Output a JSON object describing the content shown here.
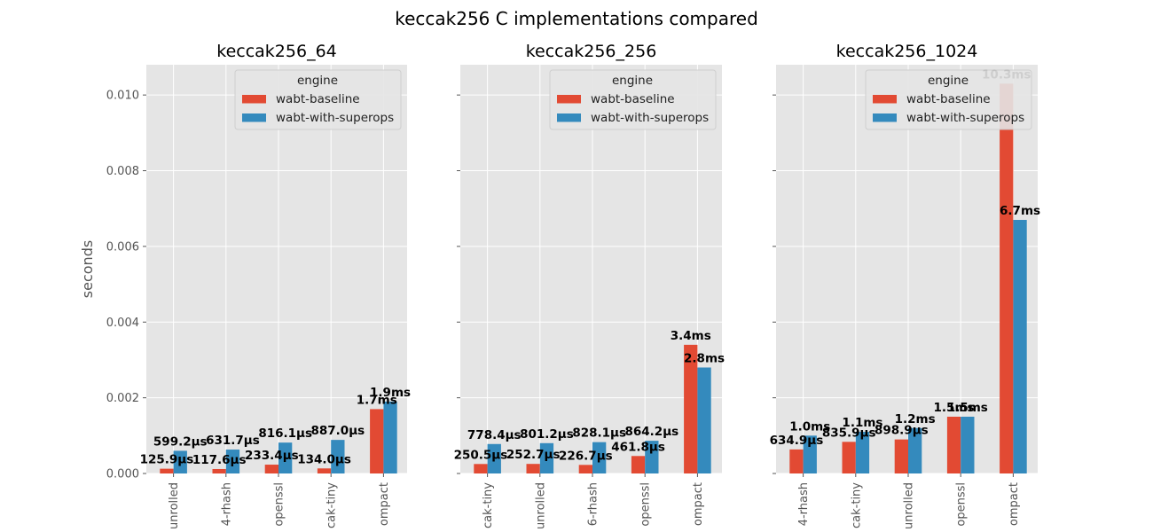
{
  "figure_title": "keccak256 C implementations compared",
  "colors": {
    "wabt-baseline": "#E24A33",
    "wabt-with-superops": "#348ABD",
    "panel_bg": "#E5E5E5",
    "grid": "#ffffff"
  },
  "chart_data": [
    {
      "type": "bar",
      "title": "keccak256_64",
      "ylabel": "seconds",
      "ylim": [
        0,
        0.0108
      ],
      "yticks": [
        "0.000",
        "0.002",
        "0.004",
        "0.006",
        "0.008",
        "0.010"
      ],
      "grid": true,
      "legend": {
        "title": "engine",
        "placement": "top-right",
        "entries": [
          "wabt-baseline",
          "wabt-with-superops"
        ]
      },
      "categories": [
        "unrolled",
        "4-rhash",
        "openssl",
        "cak-tiny",
        "ompact"
      ],
      "series": [
        {
          "name": "wabt-baseline",
          "values": [
            0.0001259,
            0.0001176,
            0.0002334,
            0.000134,
            0.0017
          ],
          "labels": [
            "125.9µs",
            "117.6µs",
            "233.4µs",
            "134.0µs",
            "1.7ms"
          ]
        },
        {
          "name": "wabt-with-superops",
          "values": [
            0.0005992,
            0.0006317,
            0.0008161,
            0.000887,
            0.0019
          ],
          "labels": [
            "599.2µs",
            "631.7µs",
            "816.1µs",
            "887.0µs",
            "1.9ms"
          ]
        }
      ]
    },
    {
      "type": "bar",
      "title": "keccak256_256",
      "ylabel": "",
      "ylim": [
        0,
        0.0108
      ],
      "yticks": [],
      "grid": true,
      "legend": {
        "title": "engine",
        "placement": "top-right",
        "entries": [
          "wabt-baseline",
          "wabt-with-superops"
        ]
      },
      "categories": [
        "cak-tiny",
        "unrolled",
        "6-rhash",
        "openssl",
        "ompact"
      ],
      "series": [
        {
          "name": "wabt-baseline",
          "values": [
            0.0002505,
            0.0002527,
            0.0002267,
            0.0004618,
            0.0034
          ],
          "labels": [
            "250.5µs",
            "252.7µs",
            "226.7µs",
            "461.8µs",
            "3.4ms"
          ]
        },
        {
          "name": "wabt-with-superops",
          "values": [
            0.0007784,
            0.0008012,
            0.0008281,
            0.0008642,
            0.0028
          ],
          "labels": [
            "778.4µs",
            "801.2µs",
            "828.1µs",
            "864.2µs",
            "2.8ms"
          ]
        }
      ]
    },
    {
      "type": "bar",
      "title": "keccak256_1024",
      "ylabel": "",
      "ylim": [
        0,
        0.0108
      ],
      "yticks": [],
      "grid": true,
      "legend": {
        "title": "engine",
        "placement": "top-right",
        "entries": [
          "wabt-baseline",
          "wabt-with-superops"
        ]
      },
      "categories": [
        "4-rhash",
        "cak-tiny",
        "unrolled",
        "openssl",
        "ompact"
      ],
      "series": [
        {
          "name": "wabt-baseline",
          "values": [
            0.0006349,
            0.0008359,
            0.0008989,
            0.0015,
            0.0103
          ],
          "labels": [
            "634.9µs",
            "835.9µs",
            "898.9µs",
            "1.5ms",
            "10.3ms"
          ]
        },
        {
          "name": "wabt-with-superops",
          "values": [
            0.001,
            0.0011,
            0.0012,
            0.0015,
            0.0067
          ],
          "labels": [
            "1.0ms",
            "1.1ms",
            "1.2ms",
            "1.5ms",
            "6.7ms"
          ]
        }
      ]
    }
  ]
}
